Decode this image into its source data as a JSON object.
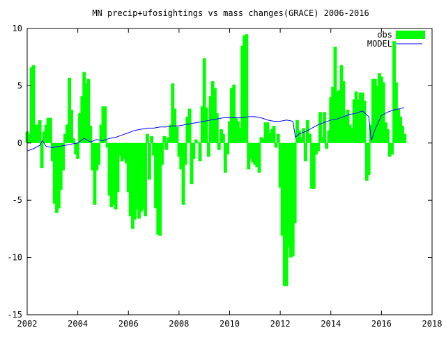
{
  "chart_data": {
    "type": "bar",
    "title": "MN precip+ufosightings vs mass changes(GRACE) 2006-2016",
    "xlabel": "",
    "ylabel": "",
    "xlim": [
      2002,
      2018
    ],
    "ylim": [
      -15,
      10
    ],
    "x_ticks": [
      2002,
      2004,
      2006,
      2008,
      2010,
      2012,
      2014,
      2016,
      2018
    ],
    "y_ticks": [
      -15,
      -10,
      -5,
      0,
      5,
      10
    ],
    "grid": false,
    "legend_position": "top-right",
    "bar_width_years": 0.083,
    "series": [
      {
        "name": "obs",
        "kind": "bar",
        "color": "#00ff00",
        "x": [
          2002.0,
          2002.08,
          2002.17,
          2002.25,
          2002.33,
          2002.42,
          2002.5,
          2002.58,
          2002.67,
          2002.75,
          2002.83,
          2002.92,
          2003.0,
          2003.08,
          2003.17,
          2003.25,
          2003.33,
          2003.42,
          2003.5,
          2003.58,
          2003.67,
          2003.75,
          2003.83,
          2003.92,
          2004.0,
          2004.08,
          2004.17,
          2004.25,
          2004.33,
          2004.42,
          2004.5,
          2004.58,
          2004.67,
          2004.75,
          2004.83,
          2004.92,
          2005.0,
          2005.08,
          2005.17,
          2005.25,
          2005.33,
          2005.42,
          2005.5,
          2005.58,
          2005.67,
          2005.75,
          2005.83,
          2005.92,
          2006.0,
          2006.08,
          2006.17,
          2006.25,
          2006.33,
          2006.42,
          2006.5,
          2006.58,
          2006.67,
          2006.75,
          2006.83,
          2006.92,
          2007.0,
          2007.08,
          2007.17,
          2007.25,
          2007.33,
          2007.42,
          2007.5,
          2007.58,
          2007.67,
          2007.75,
          2007.83,
          2007.92,
          2008.0,
          2008.08,
          2008.17,
          2008.25,
          2008.33,
          2008.42,
          2008.5,
          2008.58,
          2008.67,
          2008.75,
          2008.83,
          2008.92,
          2009.0,
          2009.08,
          2009.17,
          2009.25,
          2009.33,
          2009.42,
          2009.5,
          2009.58,
          2009.67,
          2009.75,
          2009.83,
          2009.92,
          2010.0,
          2010.08,
          2010.17,
          2010.25,
          2010.33,
          2010.42,
          2010.5,
          2010.58,
          2010.67,
          2010.75,
          2010.83,
          2010.92,
          2011.0,
          2011.08,
          2011.17,
          2011.25,
          2011.33,
          2011.42,
          2011.5,
          2011.58,
          2011.67,
          2011.75,
          2011.83,
          2011.92,
          2012.0,
          2012.08,
          2012.17,
          2012.25,
          2012.33,
          2012.42,
          2012.5,
          2012.58,
          2012.67,
          2012.75,
          2012.83,
          2012.92,
          2013.0,
          2013.08,
          2013.17,
          2013.25,
          2013.33,
          2013.42,
          2013.5,
          2013.58,
          2013.67,
          2013.75,
          2013.83,
          2013.92,
          2014.0,
          2014.08,
          2014.17,
          2014.25,
          2014.33,
          2014.42,
          2014.5,
          2014.58,
          2014.67,
          2014.75,
          2014.83,
          2014.92,
          2015.0,
          2015.08,
          2015.17,
          2015.25,
          2015.33,
          2015.42,
          2015.5,
          2015.58,
          2015.67,
          2015.75,
          2015.83,
          2015.92,
          2016.0,
          2016.08,
          2016.17,
          2016.25,
          2016.33,
          2016.42,
          2016.5,
          2016.58,
          2016.67,
          2016.75,
          2016.83,
          2016.92
        ],
        "values": [
          1.0,
          0.8,
          6.6,
          6.8,
          1.6,
          1.6,
          2.0,
          -2.2,
          1.0,
          1.6,
          2.2,
          2.2,
          -1.6,
          -5.3,
          -6.1,
          -5.7,
          -4.1,
          -2.4,
          0.8,
          1.6,
          5.7,
          2.9,
          0.4,
          -1.0,
          -1.4,
          2.6,
          4.1,
          6.2,
          5.2,
          5.6,
          1.5,
          -2.4,
          -5.4,
          -2.4,
          -1.9,
          1.6,
          3.2,
          3.2,
          -0.4,
          -4.6,
          -5.6,
          -5.4,
          -5.8,
          -4.3,
          -1.1,
          -1.6,
          -1.4,
          -1.8,
          -4.3,
          -6.4,
          -7.5,
          -6.7,
          -5.8,
          -6.6,
          -6.0,
          -5.8,
          -6.4,
          0.8,
          -3.2,
          0.6,
          -1.1,
          -5.7,
          -8.0,
          -8.1,
          -1.9,
          0.6,
          -0.6,
          0.5,
          1.6,
          5.2,
          3.0,
          1.4,
          -1.2,
          -2.3,
          -5.4,
          -1.9,
          2.3,
          3.0,
          -3.6,
          -1.4,
          0.3,
          0.1,
          -1.6,
          3.2,
          7.4,
          3.1,
          -1.2,
          4.1,
          5.4,
          4.8,
          2.6,
          -0.6,
          1.2,
          0.8,
          -2.6,
          -1.0,
          1.9,
          4.8,
          5.1,
          2.2,
          1.9,
          1.3,
          8.5,
          9.4,
          9.5,
          -2.3,
          -1.4,
          -1.7,
          -1.9,
          -2.1,
          -2.6,
          0.5,
          0.4,
          1.8,
          1.8,
          0.9,
          1.2,
          1.5,
          -0.4,
          0.8,
          -3.9,
          -8.1,
          -12.5,
          -12.5,
          -9.1,
          -10.0,
          -9.9,
          -7.0,
          2.0,
          1.1,
          0.5,
          1.3,
          -1.6,
          2.0,
          0.8,
          -4.0,
          -4.0,
          -1.0,
          -0.7,
          2.7,
          0.5,
          2.7,
          -0.5,
          1.1,
          4.0,
          4.9,
          8.4,
          4.5,
          4.6,
          6.8,
          5.4,
          2.4,
          2.9,
          1.6,
          1.3,
          3.8,
          4.5,
          3.8,
          4.4,
          4.4,
          3.7,
          -3.3,
          -2.8,
          1.6,
          5.6,
          5.6,
          5.0,
          6.1,
          5.8,
          5.3,
          1.8,
          1.2,
          -1.2,
          -1.0,
          8.9,
          5.3,
          3.0,
          2.3,
          1.5,
          0.8
        ]
      },
      {
        "name": "MODEL",
        "kind": "line",
        "color": "#0000ff",
        "x": [
          2002.0,
          2002.25,
          2002.5,
          2002.6,
          2002.75,
          2003.0,
          2003.25,
          2003.5,
          2003.75,
          2004.0,
          2004.25,
          2004.5,
          2004.75,
          2005.0,
          2005.25,
          2005.5,
          2005.75,
          2006.0,
          2006.25,
          2006.5,
          2006.75,
          2007.0,
          2007.25,
          2007.5,
          2007.75,
          2008.0,
          2008.25,
          2008.5,
          2008.75,
          2009.0,
          2009.25,
          2009.5,
          2009.75,
          2010.0,
          2010.25,
          2010.5,
          2010.75,
          2011.0,
          2011.25,
          2011.5,
          2011.75,
          2012.0,
          2012.25,
          2012.5,
          2012.6,
          2012.75,
          2013.0,
          2013.25,
          2013.5,
          2013.75,
          2014.0,
          2014.25,
          2014.5,
          2014.75,
          2015.0,
          2015.25,
          2015.5,
          2015.6,
          2015.75,
          2016.0,
          2016.25,
          2016.5,
          2016.75,
          2016.9
        ],
        "values": [
          -0.7,
          -0.5,
          -0.2,
          0.2,
          -0.3,
          -0.4,
          -0.3,
          -0.2,
          -0.1,
          0.0,
          0.4,
          0.1,
          0.3,
          0.2,
          0.4,
          0.5,
          0.7,
          0.9,
          1.1,
          1.2,
          1.3,
          1.3,
          1.4,
          1.4,
          1.5,
          1.5,
          1.6,
          1.7,
          1.8,
          1.9,
          2.0,
          2.1,
          2.2,
          2.2,
          2.2,
          2.2,
          2.3,
          2.3,
          2.2,
          2.0,
          1.9,
          1.9,
          2.0,
          1.9,
          0.5,
          0.8,
          1.0,
          1.3,
          1.6,
          1.8,
          2.0,
          2.1,
          2.3,
          2.5,
          2.6,
          2.8,
          2.3,
          0.2,
          1.2,
          2.4,
          2.7,
          2.9,
          3.0,
          3.1
        ]
      }
    ]
  }
}
